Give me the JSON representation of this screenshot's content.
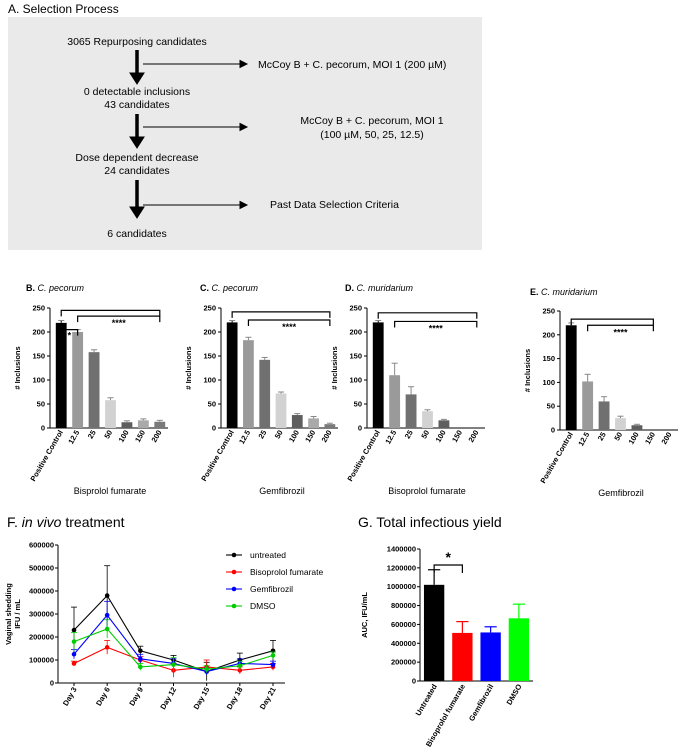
{
  "panel_a": {
    "title": "A. Selection Process",
    "box_color": "#eaeaea",
    "steps": [
      {
        "lines": [
          "3065 Repurposing candidates"
        ],
        "arrow_label": [
          "McCoy B + C. pecorum, MOI 1 (200 µM)"
        ]
      },
      {
        "lines": [
          "0 detectable inclusions",
          "43 candidates"
        ],
        "arrow_label": [
          "McCoy B + C. pecorum, MOI 1",
          "(100 µM, 50, 25, 12.5)"
        ]
      },
      {
        "lines": [
          "Dose dependent decrease",
          "24 candidates"
        ],
        "arrow_label": [
          "Past Data Selection Criteria"
        ]
      },
      {
        "lines": [
          "6 candidates"
        ],
        "arrow_label": []
      }
    ]
  },
  "chart_data": [
    {
      "id": "B",
      "type": "bar",
      "title": "B.",
      "organism": "C. pecorum",
      "ylabel": "# Inclusions",
      "xlabel": "Bisprolol fumarate",
      "ylim": [
        0,
        250
      ],
      "yticks": [
        0,
        50,
        100,
        150,
        200,
        250
      ],
      "categories": [
        "Positive Control",
        "12.5",
        "25",
        "50",
        "100",
        "150",
        "200"
      ],
      "values": [
        219,
        200,
        158,
        58,
        12,
        16,
        13
      ],
      "errors": [
        5,
        5,
        5,
        5,
        3,
        3,
        3
      ],
      "colors": [
        "#000000",
        "#9a9a9a",
        "#707070",
        "#d2d2d2",
        "#5e5e5e",
        "#a9a9a9",
        "#7a7a7a"
      ],
      "brackets": [
        {
          "from": 0,
          "to": 1,
          "y": 205,
          "label": "*"
        },
        {
          "from": 1,
          "to": 6,
          "y": 233,
          "label": "****"
        },
        {
          "from": 0,
          "to": 6,
          "y": 245,
          "label": ""
        }
      ]
    },
    {
      "id": "C",
      "type": "bar",
      "title": "C.",
      "organism": "C. pecorum",
      "ylabel": "# Inclusions",
      "xlabel": "Gemfibrozil",
      "ylim": [
        0,
        250
      ],
      "yticks": [
        0,
        50,
        100,
        150,
        200,
        250
      ],
      "categories": [
        "Positive Control",
        "12.5",
        "25",
        "50",
        "100",
        "150",
        "200"
      ],
      "values": [
        220,
        183,
        142,
        72,
        27,
        20,
        8
      ],
      "errors": [
        4,
        6,
        5,
        3,
        3,
        4,
        2
      ],
      "colors": [
        "#000000",
        "#9a9a9a",
        "#707070",
        "#d2d2d2",
        "#5e5e5e",
        "#a9a9a9",
        "#7a7a7a"
      ],
      "brackets": [
        {
          "from": 0,
          "to": 6,
          "y": 242,
          "label": ""
        },
        {
          "from": 1,
          "to": 6,
          "y": 225,
          "label": "****"
        }
      ]
    },
    {
      "id": "D",
      "type": "bar",
      "title": "D.",
      "organism": "C. muridarium",
      "ylabel": "# Inclusions",
      "xlabel": "Bisoprolol fumarate",
      "ylim": [
        0,
        250
      ],
      "yticks": [
        0,
        50,
        100,
        150,
        200,
        250
      ],
      "categories": [
        "Positive Control",
        "12.5",
        "25",
        "50",
        "100",
        "150",
        "200"
      ],
      "values": [
        220,
        110,
        70,
        35,
        16,
        0,
        0
      ],
      "errors": [
        4,
        25,
        16,
        3,
        2,
        0,
        0
      ],
      "colors": [
        "#000000",
        "#9a9a9a",
        "#707070",
        "#d2d2d2",
        "#5e5e5e",
        "#a9a9a9",
        "#7a7a7a"
      ],
      "brackets": [
        {
          "from": 0,
          "to": 6,
          "y": 240,
          "label": ""
        },
        {
          "from": 1,
          "to": 6,
          "y": 222,
          "label": "****"
        }
      ]
    },
    {
      "id": "E",
      "type": "bar",
      "title": "E.",
      "organism": "C. muridarium",
      "ylabel": "# Inclusions",
      "xlabel": "Gemfibrozil",
      "ylim": [
        0,
        250
      ],
      "yticks": [
        0,
        50,
        100,
        150,
        200,
        250
      ],
      "categories": [
        "Positive Control",
        "12.5",
        "25",
        "50",
        "100",
        "150",
        "200"
      ],
      "values": [
        220,
        102,
        60,
        25,
        10,
        0,
        0
      ],
      "errors": [
        5,
        15,
        10,
        4,
        2,
        0,
        0
      ],
      "colors": [
        "#000000",
        "#9a9a9a",
        "#707070",
        "#d2d2d2",
        "#5e5e5e",
        "#a9a9a9",
        "#7a7a7a"
      ],
      "brackets": [
        {
          "from": 0,
          "to": 5,
          "y": 233,
          "label": ""
        },
        {
          "from": 1,
          "to": 5,
          "y": 220,
          "label": "****"
        }
      ]
    },
    {
      "id": "F",
      "type": "line",
      "title": "F.",
      "title_italic": "in vivo",
      "title_rest": "treatment",
      "ylabel": [
        "Vaginal shedding",
        "IFU / mL"
      ],
      "ylim": [
        0,
        600000
      ],
      "yticks": [
        0,
        100000,
        200000,
        300000,
        400000,
        500000,
        600000
      ],
      "x": [
        "Day 3",
        "Day 6",
        "Day 9",
        "Day 12",
        "Day 15",
        "Day 18",
        "Day 21"
      ],
      "series": [
        {
          "name": "untreated",
          "color": "#000000",
          "values": [
            230000,
            380000,
            140000,
            100000,
            50000,
            100000,
            140000
          ],
          "errors": [
            100000,
            130000,
            20000,
            20000,
            40000,
            30000,
            45000
          ]
        },
        {
          "name": "Bisoprolol fumarate",
          "color": "#ff0000",
          "values": [
            85000,
            155000,
            100000,
            55000,
            70000,
            55000,
            70000
          ],
          "errors": [
            10000,
            30000,
            15000,
            30000,
            30000,
            15000,
            15000
          ]
        },
        {
          "name": "Gemfibrozil",
          "color": "#0000ff",
          "values": [
            125000,
            295000,
            105000,
            85000,
            50000,
            85000,
            80000
          ],
          "errors": [
            20000,
            60000,
            20000,
            20000,
            15000,
            20000,
            15000
          ]
        },
        {
          "name": "DMSO",
          "color": "#00cc00",
          "values": [
            180000,
            235000,
            70000,
            80000,
            60000,
            75000,
            120000
          ],
          "errors": [
            40000,
            40000,
            15000,
            30000,
            15000,
            20000,
            15000
          ]
        }
      ]
    },
    {
      "id": "G",
      "type": "bar",
      "title": "G.",
      "title_rest": "Total infectious yield",
      "ylabel": "AUC, IFU/mL",
      "ylim": [
        0,
        1400000
      ],
      "yticks": [
        0,
        200000,
        400000,
        600000,
        800000,
        1000000,
        1200000,
        1400000
      ],
      "categories": [
        "Untreated",
        "Bisoprolol fumarate",
        "Gemfibrozil",
        "DMSO"
      ],
      "values": [
        1020000,
        510000,
        515000,
        665000
      ],
      "errors": [
        160000,
        120000,
        60000,
        150000
      ],
      "colors": [
        "#000000",
        "#ff0000",
        "#0000ff",
        "#00ff00"
      ],
      "brackets": [
        {
          "from": 0,
          "to": 1,
          "y": 1230000,
          "label": "*"
        }
      ]
    }
  ]
}
